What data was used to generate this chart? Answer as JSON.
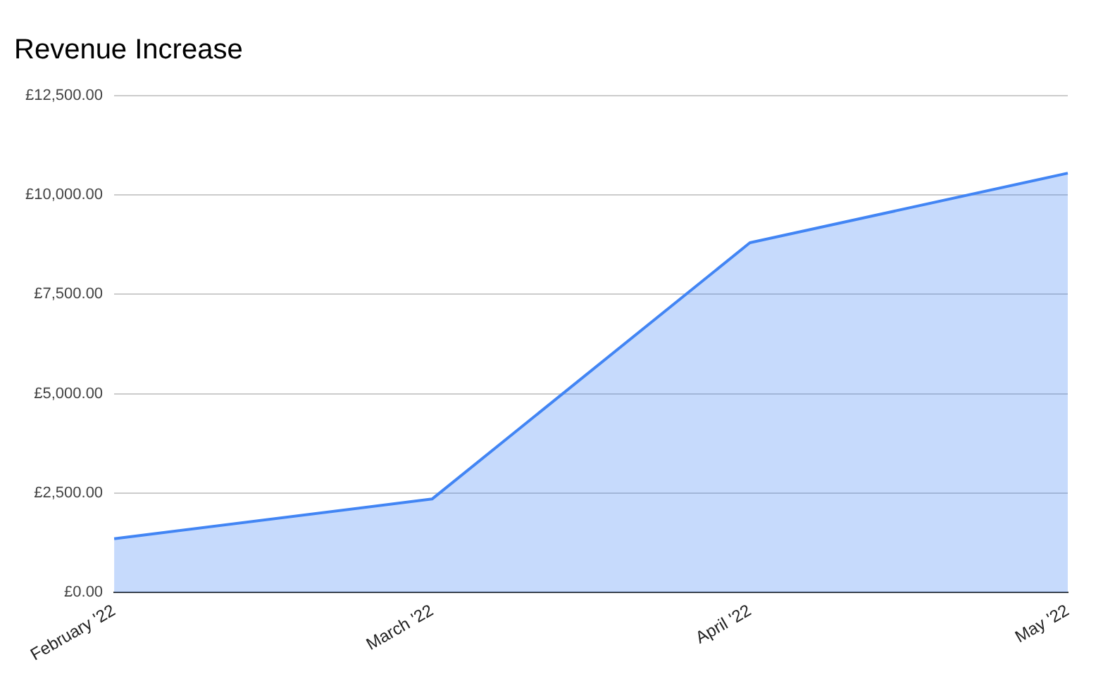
{
  "chart_data": {
    "type": "area",
    "title": "Revenue Increase",
    "categories": [
      "February '22",
      "March '22",
      "April '22",
      "May '22"
    ],
    "series": [
      {
        "color": "#4285f4",
        "values": [
          1350,
          2350,
          8800,
          10550
        ]
      }
    ],
    "ylim": [
      0,
      12500
    ],
    "yticks": [
      {
        "value": 0,
        "label": "£0.00"
      },
      {
        "value": 2500,
        "label": "£2,500.00"
      },
      {
        "value": 5000,
        "label": "£5,000.00"
      },
      {
        "value": 7500,
        "label": "£7,500.00"
      },
      {
        "value": 10000,
        "label": "£10,000.00"
      },
      {
        "value": 12500,
        "label": "£12,500.00"
      }
    ],
    "grid": "y",
    "legend": false
  }
}
